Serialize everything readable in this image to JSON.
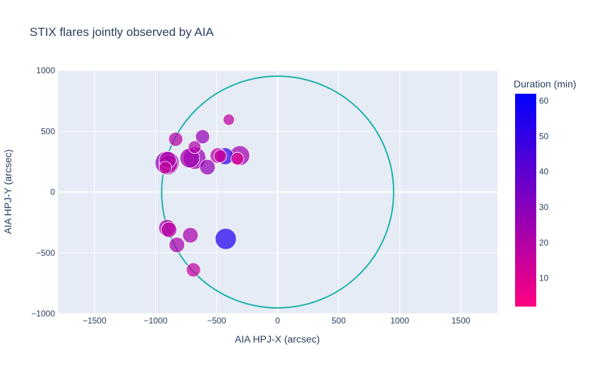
{
  "chart_data": {
    "type": "scatter",
    "title": "STIX flares jointly observed by AIA",
    "xlabel": "AIA HPJ-X (arcsec)",
    "ylabel": "AIA HPJ-Y (arcsec)",
    "xlim": [
      -1800,
      1800
    ],
    "ylim": [
      -1000,
      1000
    ],
    "xticks": [
      -1500,
      -1000,
      -500,
      0,
      500,
      1000,
      1500
    ],
    "yticks": [
      -1000,
      -500,
      0,
      500,
      1000
    ],
    "xtick_labels": [
      "−1500",
      "−1000",
      "−500",
      "0",
      "500",
      "1000",
      "1500"
    ],
    "ytick_labels": [
      "−1000",
      "−500",
      "0",
      "500",
      "1000"
    ],
    "grid": true,
    "solar_limb_radius": 950,
    "colorbar": {
      "title": "Duration (min)",
      "range": [
        2,
        62
      ],
      "ticks": [
        10,
        20,
        30,
        40,
        50,
        60
      ],
      "tick_labels": [
        "10",
        "20",
        "30",
        "40",
        "50",
        "60"
      ],
      "color_low": "#ff0080",
      "color_high": "#0000ff"
    },
    "colors": {
      "limb": "#20b2aa",
      "plot_bg": "#e5ecf6",
      "grid": "#ffffff"
    },
    "points": [
      {
        "x": -400,
        "y": 595,
        "duration": 18,
        "size": 8
      },
      {
        "x": -615,
        "y": 455,
        "duration": 27,
        "size": 10
      },
      {
        "x": -835,
        "y": 435,
        "duration": 20,
        "size": 10
      },
      {
        "x": -680,
        "y": 370,
        "duration": 20,
        "size": 9
      },
      {
        "x": -900,
        "y": 265,
        "duration": 22,
        "size": 12
      },
      {
        "x": -895,
        "y": 230,
        "duration": 18,
        "size": 13
      },
      {
        "x": -905,
        "y": 240,
        "duration": 28,
        "size": 17
      },
      {
        "x": -920,
        "y": 200,
        "duration": 17,
        "size": 9
      },
      {
        "x": -720,
        "y": 280,
        "duration": 24,
        "size": 14
      },
      {
        "x": -680,
        "y": 280,
        "duration": 26,
        "size": 16
      },
      {
        "x": -575,
        "y": 205,
        "duration": 27,
        "size": 11
      },
      {
        "x": -490,
        "y": 300,
        "duration": 20,
        "size": 11
      },
      {
        "x": -470,
        "y": 295,
        "duration": 15,
        "size": 9
      },
      {
        "x": -430,
        "y": 295,
        "duration": 50,
        "size": 12
      },
      {
        "x": -310,
        "y": 300,
        "duration": 24,
        "size": 14
      },
      {
        "x": -330,
        "y": 275,
        "duration": 10,
        "size": 9
      },
      {
        "x": -905,
        "y": -295,
        "duration": 22,
        "size": 12
      },
      {
        "x": -890,
        "y": -310,
        "duration": 18,
        "size": 11
      },
      {
        "x": -715,
        "y": -355,
        "duration": 22,
        "size": 11
      },
      {
        "x": -825,
        "y": -435,
        "duration": 22,
        "size": 11
      },
      {
        "x": -690,
        "y": -640,
        "duration": 16,
        "size": 10
      },
      {
        "x": -425,
        "y": -385,
        "duration": 55,
        "size": 15
      }
    ]
  }
}
